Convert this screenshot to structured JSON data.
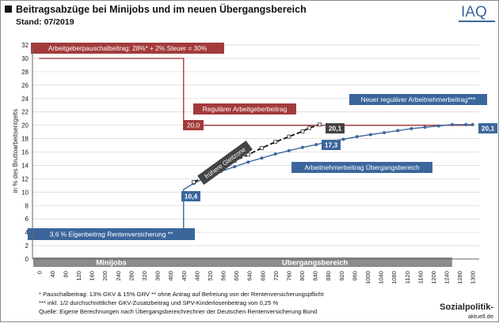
{
  "header": {
    "title": "Beitragsabzüge bei Minijobs und im neuen Übergangsbereich",
    "subtitle": "Stand: 07/2019",
    "logo_text": "IAQ",
    "brand_text": "Sozialpolitik-",
    "brand_subtext": "aktuell.de"
  },
  "footnotes": [
    "* Pauschalbeitrag: 13% GKV & 15% GRV   ** ohne Antrag auf Befreiung von der Rentenversicherungspflicht",
    "*** inkl. 1/2 durchschnittlicher GKV-Zusatzbeitrag  und SPV-Kinderlosenbeitrag von 0,25 %",
    "Quelle: Eigene Berechnungen nach Übergangsbereichrechner der Deutschen Rentenversicherung Bund"
  ],
  "colors": {
    "employer": "#a33b3b",
    "employee": "#3b669c",
    "dark": "#444444",
    "band": "#8c8c8c",
    "grid": "#d9d9d9"
  },
  "chart_data": {
    "type": "line",
    "ylabel": "in % des Bruttoarbeitsentgelts",
    "xlabel": "",
    "ylim": [
      0,
      32
    ],
    "yticks": [
      0,
      2,
      4,
      6,
      8,
      10,
      12,
      14,
      16,
      18,
      20,
      22,
      24,
      26,
      28,
      30,
      32
    ],
    "x_ticks": [
      "0",
      "40",
      "80",
      "120",
      "160",
      "200",
      "240",
      "280",
      "320",
      "360",
      "400",
      "450",
      "480",
      "520",
      "560",
      "600",
      "640",
      "680",
      "720",
      "760",
      "800",
      "840",
      "880",
      "920",
      "960",
      "1000",
      "1040",
      "1080",
      "1120",
      "1160",
      "1200",
      "1240",
      "1280",
      "1300"
    ],
    "grid": "horizontal",
    "bands": [
      {
        "label": "Minijobs",
        "from": "0",
        "to": "450"
      },
      {
        "label": "Übergangsbereich",
        "from": "450",
        "to": "1240"
      }
    ],
    "series": [
      {
        "name": "Arbeitgeberpauschalbeitrag",
        "x": [
          0,
          450,
          450,
          1300
        ],
        "y": [
          30,
          30,
          20,
          20
        ]
      },
      {
        "name": "Arbeitnehmerbeitrag Übergangsbereich",
        "x": [
          0,
          450,
          450,
          480,
          520,
          560,
          600,
          640,
          680,
          720,
          760,
          800,
          840,
          880,
          920,
          960,
          1000,
          1040,
          1080,
          1120,
          1160,
          1200,
          1240,
          1280,
          1300
        ],
        "y": [
          3.6,
          3.6,
          10.4,
          11.3,
          12.3,
          13.1,
          13.8,
          14.5,
          15.1,
          15.7,
          16.2,
          16.7,
          17.1,
          17.6,
          17.9,
          18.3,
          18.6,
          18.9,
          19.2,
          19.5,
          19.7,
          19.9,
          20.1,
          20.1,
          20.1
        ]
      },
      {
        "name": "frühere Gleitzone",
        "x": [
          480,
          520,
          560,
          600,
          640,
          680,
          720,
          760,
          800,
          820,
          850
        ],
        "y": [
          11.5,
          12.6,
          13.7,
          14.7,
          15.6,
          16.6,
          17.5,
          18.3,
          19.1,
          19.6,
          20.1
        ]
      }
    ],
    "annotations": [
      {
        "text": "Arbeitgeberpauschalbeitrag: 28%* + 2% Steuer = 30%"
      },
      {
        "text": "Regulärer Arbeitgeberbeitrag"
      },
      {
        "text": "20,0"
      },
      {
        "text": "Neuer regulärer Arbeitnehmerbeitrag***"
      },
      {
        "text": "20,1"
      },
      {
        "text": "20,1"
      },
      {
        "text": "17,3"
      },
      {
        "text": "Arbeitnehmerbeitrag Übergangsbereich"
      },
      {
        "text": "frühere Gleitzone"
      },
      {
        "text": "10,4"
      },
      {
        "text": "3,6 % Eigenbeitrag Rentenversicherung **"
      }
    ]
  }
}
